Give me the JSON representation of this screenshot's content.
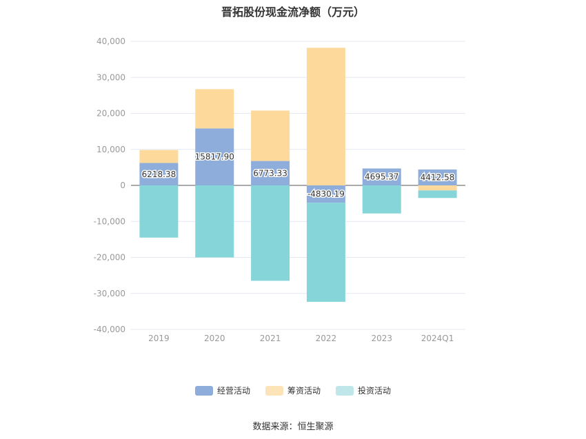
{
  "chart_data": {
    "type": "bar",
    "stacked": true,
    "title": "晋拓股份现金流净额（万元）",
    "categories": [
      "2019",
      "2020",
      "2021",
      "2022",
      "2023",
      "2024Q1"
    ],
    "ylim": [
      -40000,
      40000
    ],
    "yticks": [
      40000,
      30000,
      20000,
      10000,
      0,
      -10000,
      -20000,
      -30000,
      -40000
    ],
    "ytick_labels": [
      "40,000",
      "30,000",
      "20,000",
      "10,000",
      "0",
      "-10,000",
      "-20,000",
      "-30,000",
      "-40,000"
    ],
    "grid": true,
    "legend_position": "bottom",
    "series": [
      {
        "name": "经营活动",
        "color": "#8eaddb",
        "values": [
          6218.38,
          15817.9,
          6773.33,
          -4830.19,
          4695.37,
          4412.58
        ],
        "labels": [
          "6218.38",
          "15817.90",
          "6773.33",
          "-4830.19",
          "4695.37",
          "4412.58"
        ]
      },
      {
        "name": "筹资活动",
        "color": "#fdd99b",
        "values": [
          3600,
          10900,
          14000,
          38200,
          0,
          -1400
        ]
      },
      {
        "name": "投资活动",
        "color": "#86d5d9",
        "values": [
          -14500,
          -20000,
          -26500,
          -27500,
          -7800,
          -2100
        ]
      }
    ]
  },
  "legend": {
    "items": [
      {
        "label": "经营活动",
        "color": "#8eaddb"
      },
      {
        "label": "筹资活动",
        "color": "#fde3b8"
      },
      {
        "label": "投资活动",
        "color": "#bfe7ea"
      }
    ]
  },
  "source": "数据来源：恒生聚源"
}
